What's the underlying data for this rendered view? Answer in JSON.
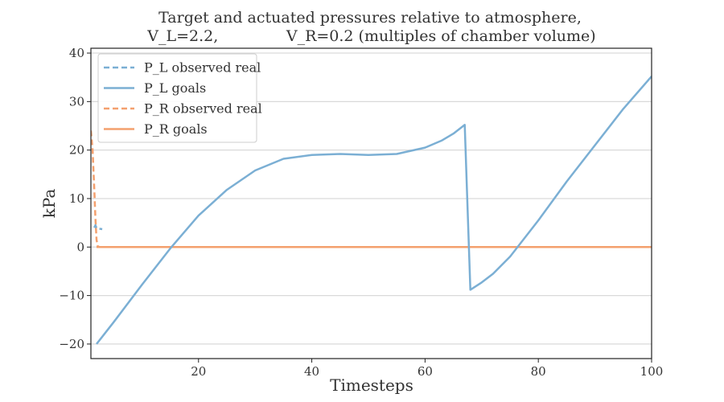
{
  "chart_data": {
    "type": "line",
    "title_lines": [
      "Target and actuated pressures relative to atmosphere,",
      "V_L=2.2,              V_R=0.2 (multiples of chamber volume)"
    ],
    "xlabel": "Timesteps",
    "ylabel": "kPa",
    "xlim": [
      1,
      100
    ],
    "ylim": [
      -23,
      41
    ],
    "xticks": [
      20,
      40,
      60,
      80,
      100
    ],
    "yticks": [
      -20,
      -10,
      0,
      10,
      20,
      30,
      40
    ],
    "xtick_labels": [
      "20",
      "40",
      "60",
      "80",
      "100"
    ],
    "ytick_labels": [
      "−20",
      "−10",
      "0",
      "10",
      "20",
      "30",
      "40"
    ],
    "grid": "horizontal",
    "legend_position": "top-left",
    "series": [
      {
        "name": "P_L observed real",
        "style": "dashed",
        "color": "#7bafd4",
        "x": [
          1.6,
          1.8,
          2.0,
          2.4,
          3.0
        ],
        "y": [
          4.0,
          4.5,
          3.9,
          3.8,
          3.7
        ]
      },
      {
        "name": "P_L goals",
        "style": "solid",
        "color": "#7bafd4",
        "x": [
          2,
          5,
          10,
          15,
          20,
          25,
          30,
          35,
          40,
          45,
          50,
          55,
          60,
          63,
          65,
          67,
          68,
          70,
          72,
          75,
          80,
          85,
          90,
          95,
          100
        ],
        "y": [
          -20,
          -15.5,
          -7.8,
          -0.3,
          6.5,
          11.8,
          15.8,
          18.2,
          19.0,
          19.2,
          19.0,
          19.2,
          20.5,
          22.0,
          23.4,
          25.2,
          -8.8,
          -7.3,
          -5.5,
          -2.0,
          5.5,
          13.5,
          21.0,
          28.5,
          35.2
        ]
      },
      {
        "name": "P_R observed real",
        "style": "dashed",
        "color": "#f4a06e",
        "x": [
          1.0,
          1.3,
          1.6,
          1.8,
          2.0,
          2.2,
          2.5,
          3.0
        ],
        "y": [
          24.0,
          20.0,
          12.0,
          6.0,
          1.5,
          0.2,
          0.0,
          0.0
        ]
      },
      {
        "name": "P_R goals",
        "style": "solid",
        "color": "#f4a06e",
        "x": [
          2,
          100
        ],
        "y": [
          0,
          0
        ]
      }
    ]
  }
}
